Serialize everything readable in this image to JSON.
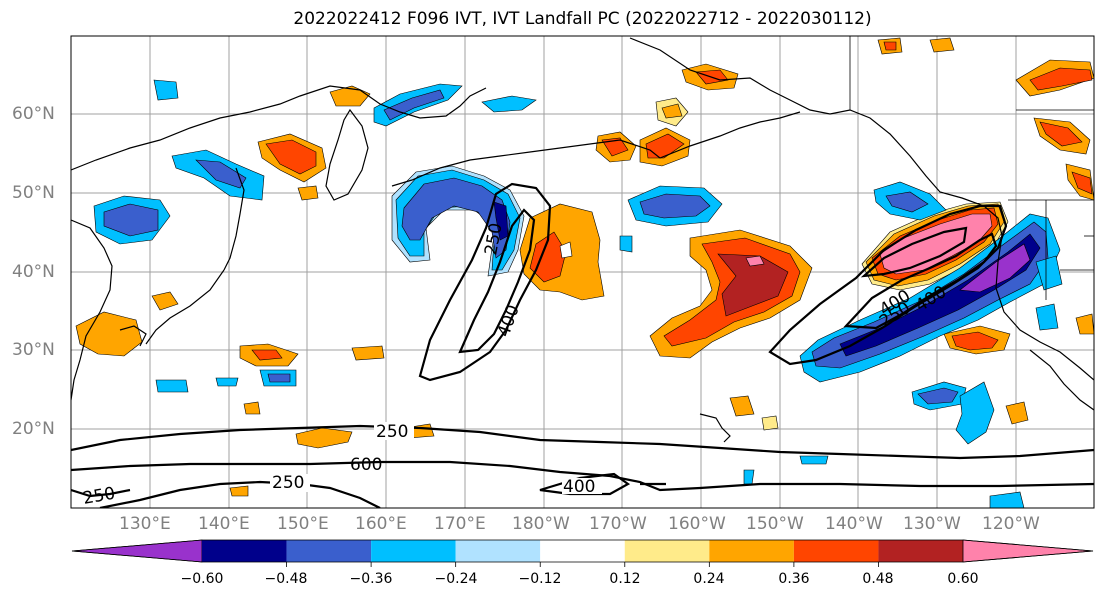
{
  "title": "2022022412 F096 IVT, IVT Landfall PC (2022022712 - 2022030112)",
  "lat_labels": [
    "60°N",
    "50°N",
    "40°N",
    "30°N",
    "20°N"
  ],
  "lon_labels": [
    "130°E",
    "140°E",
    "150°E",
    "160°E",
    "170°E",
    "180°W",
    "170°W",
    "160°W",
    "150°W",
    "140°W",
    "130°W",
    "120°W"
  ],
  "contour_labels": [
    "250",
    "400",
    "250",
    "400",
    "600",
    "250",
    "400",
    "250",
    "250",
    "400"
  ],
  "colorbar": {
    "ticks": [
      "−0.60",
      "−0.48",
      "−0.36",
      "−0.24",
      "−0.12",
      "0.12",
      "0.24",
      "0.36",
      "0.48",
      "0.60"
    ],
    "colors": [
      "#9932cc",
      "#00008b",
      "#3a5fcd",
      "#00bfff",
      "#b0e2ff",
      "#ffffff",
      "#ffeb8a",
      "#ffa500",
      "#ff4500",
      "#b22222",
      "#ff82ab"
    ]
  }
}
